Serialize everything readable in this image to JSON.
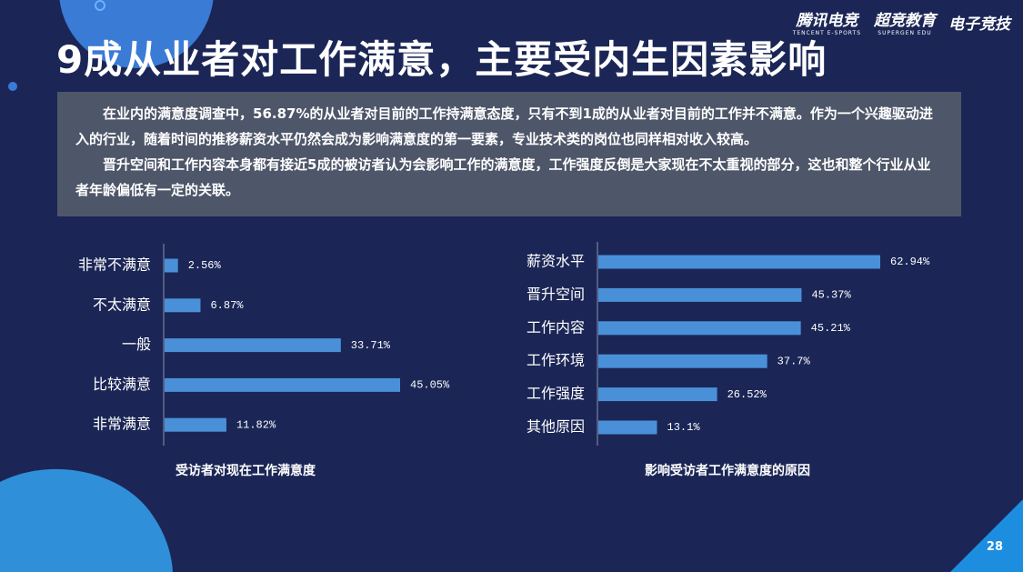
{
  "header": {
    "title": "9成从业者对工作满意，主要受内生因素影响",
    "logos": [
      {
        "name": "腾讯电竞",
        "sub": "TENCENT E-SPORTS"
      },
      {
        "name": "超竞教育",
        "sub": "SUPERGEN EDU"
      },
      {
        "name": "电子竞技"
      }
    ]
  },
  "paragraphs": [
    "在业内的满意度调查中，56.87%的从业者对目前的工作持满意态度，只有不到1成的从业者对目前的工作并不满意。作为一个兴趣驱动进入的行业，随着时间的推移薪资水平仍然会成为影响满意度的第一要素，专业技术类的岗位也同样相对收入较高。",
    "晋升空间和工作内容本身都有接近5成的被访者认为会影响工作的满意度，工作强度反倒是大家现在不太重视的部分，这也和整个行业从业者年龄偏低有一定的关联。"
  ],
  "page_number": "28",
  "chart_data": [
    {
      "type": "bar",
      "orientation": "horizontal",
      "title": "受访者对现在工作满意度",
      "categories": [
        "非常不满意",
        "不太满意",
        "一般",
        "比较满意",
        "非常满意"
      ],
      "values": [
        2.56,
        6.87,
        33.71,
        45.05,
        11.82
      ],
      "value_labels": [
        "2.56%",
        "6.87%",
        "33.71%",
        "45.05%",
        "11.82%"
      ],
      "color": "#4a90d9"
    },
    {
      "type": "bar",
      "orientation": "horizontal",
      "title": "影响受访者工作满意度的原因",
      "categories": [
        "薪资水平",
        "晋升空间",
        "工作内容",
        "工作环境",
        "工作强度",
        "其他原因"
      ],
      "values": [
        62.94,
        45.37,
        45.21,
        37.7,
        26.52,
        13.1
      ],
      "value_labels": [
        "62.94%",
        "45.37%",
        "45.21%",
        "37.7%",
        "26.52%",
        "13.1%"
      ],
      "color": "#4a90d9"
    }
  ]
}
